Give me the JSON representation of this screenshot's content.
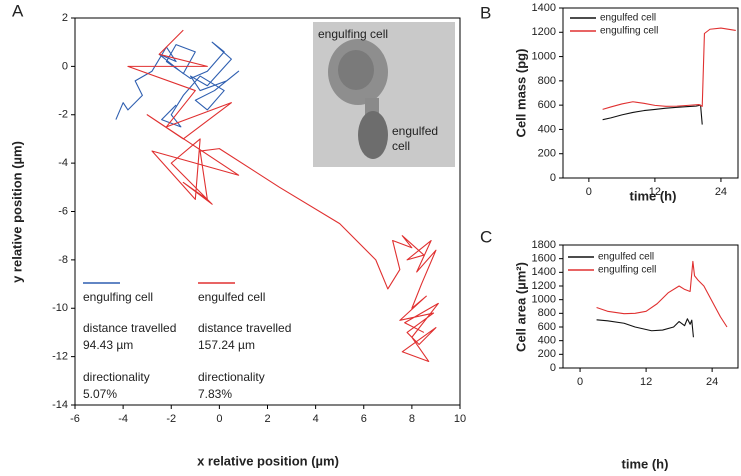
{
  "chart_data": [
    {
      "type": "line",
      "panel": "A",
      "xlabel": "x relative position (µm)",
      "ylabel": "y relative position (µm)",
      "xlim": [
        -6,
        10
      ],
      "xticks": [
        -6,
        -4,
        -2,
        0,
        2,
        4,
        6,
        8,
        10
      ],
      "ylim": [
        -14,
        2
      ],
      "yticks": [
        -14,
        -12,
        -10,
        -8,
        -6,
        -4,
        -2,
        0,
        2
      ],
      "series": [
        {
          "name": "engulfing cell",
          "color": "#2f5fb0",
          "x": [
            -4.3,
            -4.0,
            -3.8,
            -3.2,
            -3.5,
            -2.8,
            -2.2,
            -1.8,
            -2.5,
            -1.5,
            -1.0,
            -1.8,
            -2.2,
            -1.2,
            -0.5,
            0.2,
            -0.3,
            0.5,
            -0.5,
            -1.2,
            -0.8,
            0.3,
            0.8,
            -0.2,
            -1.0,
            -0.5,
            0.2,
            -0.8,
            -1.5,
            -2.0,
            -1.6,
            -2.4,
            -1.8
          ],
          "values": [
            -2.2,
            -1.5,
            -1.8,
            -1.2,
            -0.6,
            -0.2,
            0.8,
            0.2,
            0.5,
            -0.3,
            0.6,
            0.9,
            0.2,
            -0.5,
            -0.2,
            0.6,
            1.0,
            0.3,
            -0.8,
            -0.4,
            -1.0,
            -0.6,
            -0.2,
            -1.0,
            -1.4,
            -1.8,
            -1.0,
            -0.4,
            -1.2,
            -2.0,
            -2.5,
            -2.2,
            -1.6
          ]
        },
        {
          "name": "engulfed cell",
          "color": "#e03030",
          "x": [
            -1.5,
            -2.5,
            -0.5,
            -3.8,
            -1.0,
            -2.2,
            0.5,
            -1.5,
            -3.0,
            0.8,
            -2.8,
            -1.0,
            -0.8,
            -2.0,
            -0.3,
            -1.5,
            -0.5,
            -0.8,
            0.0,
            2.5,
            5.0,
            6.5,
            7.0,
            7.5,
            7.2,
            8.0,
            7.6,
            8.5,
            7.8,
            8.8,
            8.2,
            9.0,
            8.4,
            8.0,
            8.6,
            7.5,
            8.9,
            7.8,
            8.3,
            9.0,
            7.6,
            8.7,
            8.0,
            9.1,
            7.7,
            8.5
          ],
          "values": [
            1.5,
            0.5,
            0.0,
            0.0,
            -1.0,
            -2.5,
            -1.5,
            -3.0,
            -2.0,
            -4.5,
            -3.5,
            -5.5,
            -3.0,
            -4.0,
            -5.7,
            -4.8,
            -5.5,
            -3.5,
            -3.4,
            -5.0,
            -6.5,
            -8.0,
            -9.2,
            -8.4,
            -7.2,
            -7.5,
            -7.0,
            -7.8,
            -8.0,
            -7.2,
            -8.5,
            -7.6,
            -9.0,
            -10.0,
            -9.5,
            -10.5,
            -10.2,
            -11.0,
            -11.5,
            -10.8,
            -11.8,
            -12.2,
            -11.2,
            -9.8,
            -10.6,
            -11.0
          ]
        }
      ],
      "annotations": [
        "distance travelled",
        "94.43 µm",
        "directionality",
        "5.07%",
        "distance travelled",
        "157.24 µm",
        "directionality",
        "7.83%"
      ],
      "inset_labels": [
        "engulfing cell",
        "engulfed cell"
      ]
    },
    {
      "type": "line",
      "panel": "B",
      "xlabel": "time (h)",
      "ylabel": "Cell mass (pg)",
      "xlim": [
        -4.7,
        27.1
      ],
      "xticks": [
        0,
        12,
        24
      ],
      "ylim": [
        0,
        1400
      ],
      "yticks": [
        0,
        200,
        400,
        600,
        800,
        1000,
        1200,
        1400
      ],
      "series": [
        {
          "name": "engulfed cell",
          "color": "#111111",
          "x": [
            2.5,
            4,
            6,
            8,
            10,
            12,
            14,
            16,
            18,
            19.5,
            20.3,
            20.6
          ],
          "values": [
            480,
            495,
            520,
            540,
            555,
            565,
            575,
            582,
            588,
            592,
            600,
            440
          ]
        },
        {
          "name": "engulfing cell",
          "color": "#e03030",
          "x": [
            2.5,
            4,
            6,
            8,
            10,
            12,
            14,
            16,
            18,
            20,
            20.6,
            21,
            22,
            24,
            26.7
          ],
          "values": [
            565,
            585,
            610,
            628,
            615,
            598,
            590,
            592,
            598,
            605,
            590,
            1190,
            1225,
            1235,
            1215
          ]
        }
      ]
    },
    {
      "type": "line",
      "panel": "C",
      "xlabel": "time (h)",
      "ylabel": "Cell area (µm²)",
      "xlim": [
        -3.1,
        28.7
      ],
      "xticks": [
        0,
        12,
        24
      ],
      "ylim": [
        0,
        1800
      ],
      "yticks": [
        0,
        200,
        400,
        600,
        800,
        1000,
        1200,
        1400,
        1600,
        1800
      ],
      "series": [
        {
          "name": "engulfed cell",
          "color": "#111111",
          "x": [
            3,
            5,
            8,
            10,
            13,
            15,
            17,
            18,
            19,
            19.5,
            20,
            20.3,
            20.6
          ],
          "values": [
            705,
            690,
            655,
            600,
            545,
            555,
            600,
            680,
            620,
            720,
            640,
            700,
            450
          ]
        },
        {
          "name": "engulfing cell",
          "color": "#e03030",
          "x": [
            3,
            5,
            8,
            10,
            12,
            14,
            16,
            18,
            19,
            20,
            20.5,
            20.8,
            21.5,
            22.5,
            23.5,
            24.5,
            25.5,
            26.7
          ],
          "values": [
            885,
            830,
            795,
            800,
            830,
            940,
            1100,
            1200,
            1150,
            1120,
            1560,
            1350,
            1280,
            1200,
            1050,
            900,
            750,
            600
          ]
        }
      ]
    }
  ]
}
